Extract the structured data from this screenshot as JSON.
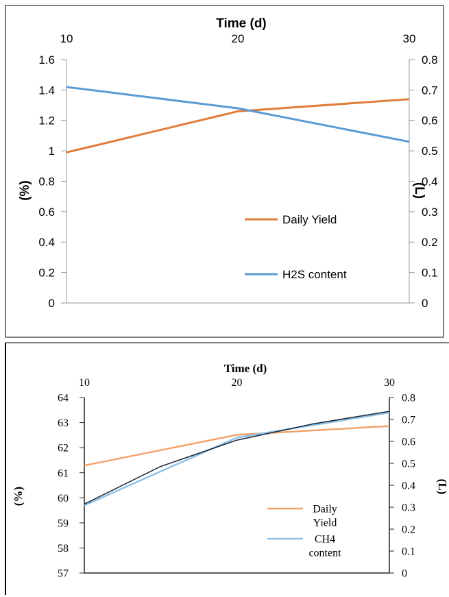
{
  "chart_data": [
    {
      "type": "line",
      "xlabel": "Time (d)",
      "ylabel_left": "(%)",
      "ylabel_right": "(L)",
      "x_ticks": [
        "10",
        "20",
        "30"
      ],
      "y_left_ticks": [
        "1.6",
        "1.4",
        "1.2",
        "1",
        "0.8",
        "0.6",
        "0.4",
        "0.2",
        "0"
      ],
      "y_right_ticks": [
        "0.8",
        "0.7",
        "0.6",
        "0.5",
        "0.4",
        "0.3",
        "0.2",
        "0.1",
        "0"
      ],
      "ylim_left": [
        0,
        1.6
      ],
      "ylim_right": [
        0,
        0.8
      ],
      "xlim": [
        10,
        30
      ],
      "grid": false,
      "legend_position": "lower-right",
      "series": [
        {
          "name": "Daily Yield",
          "axis": "right",
          "color": "#e07b39",
          "x": [
            10,
            20,
            30
          ],
          "values": [
            0.495,
            0.63,
            0.67
          ]
        },
        {
          "name": "H2S content",
          "axis": "left",
          "color": "#5b9bd5",
          "x": [
            10,
            20,
            30
          ],
          "values": [
            1.42,
            1.28,
            1.06
          ]
        }
      ]
    },
    {
      "type": "line",
      "xlabel": "Time (d)",
      "ylabel_left": "(%)",
      "ylabel_right": "(L)",
      "x_ticks": [
        "10",
        "20",
        "30"
      ],
      "y_left_ticks": [
        "64",
        "63",
        "62",
        "61",
        "60",
        "59",
        "58",
        "57"
      ],
      "y_right_ticks": [
        "0.8",
        "0.7",
        "0.6",
        "0.5",
        "0.4",
        "0.3",
        "0.2",
        "0.1",
        "0"
      ],
      "ylim_left": [
        57,
        64
      ],
      "ylim_right": [
        0,
        0.8
      ],
      "xlim": [
        10,
        30
      ],
      "grid": false,
      "legend_position": "lower-right",
      "series": [
        {
          "name": "Daily Yield",
          "axis": "right",
          "color": "#f2a36b",
          "x": [
            10,
            20,
            30
          ],
          "values": [
            0.49,
            0.63,
            0.67
          ]
        },
        {
          "name": "CH4 content",
          "axis": "left",
          "color": "#8ec0e4",
          "x": [
            10,
            20,
            30
          ],
          "values": [
            59.7,
            62.4,
            63.4
          ]
        }
      ],
      "trendline": {
        "color": "#1f2a3a",
        "x": [
          10,
          15,
          20,
          25,
          30
        ],
        "values": [
          59.75,
          61.25,
          62.3,
          62.95,
          63.45
        ]
      }
    }
  ]
}
